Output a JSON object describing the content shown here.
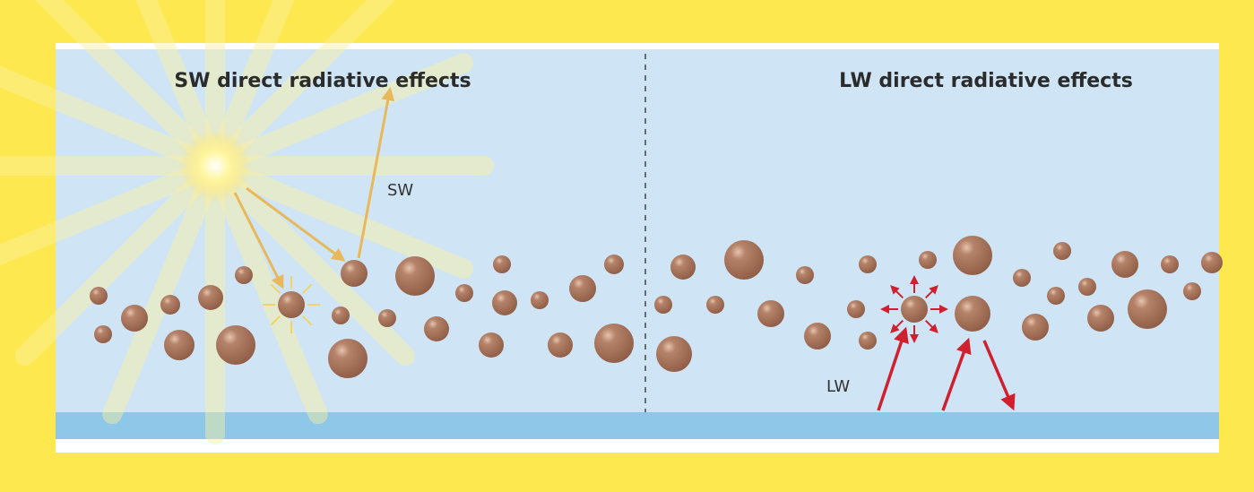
{
  "panels": [
    {
      "title": "SW direct radiative effects",
      "label": "SW"
    },
    {
      "title": "LW direct radiative effects",
      "label": "LW"
    }
  ]
}
